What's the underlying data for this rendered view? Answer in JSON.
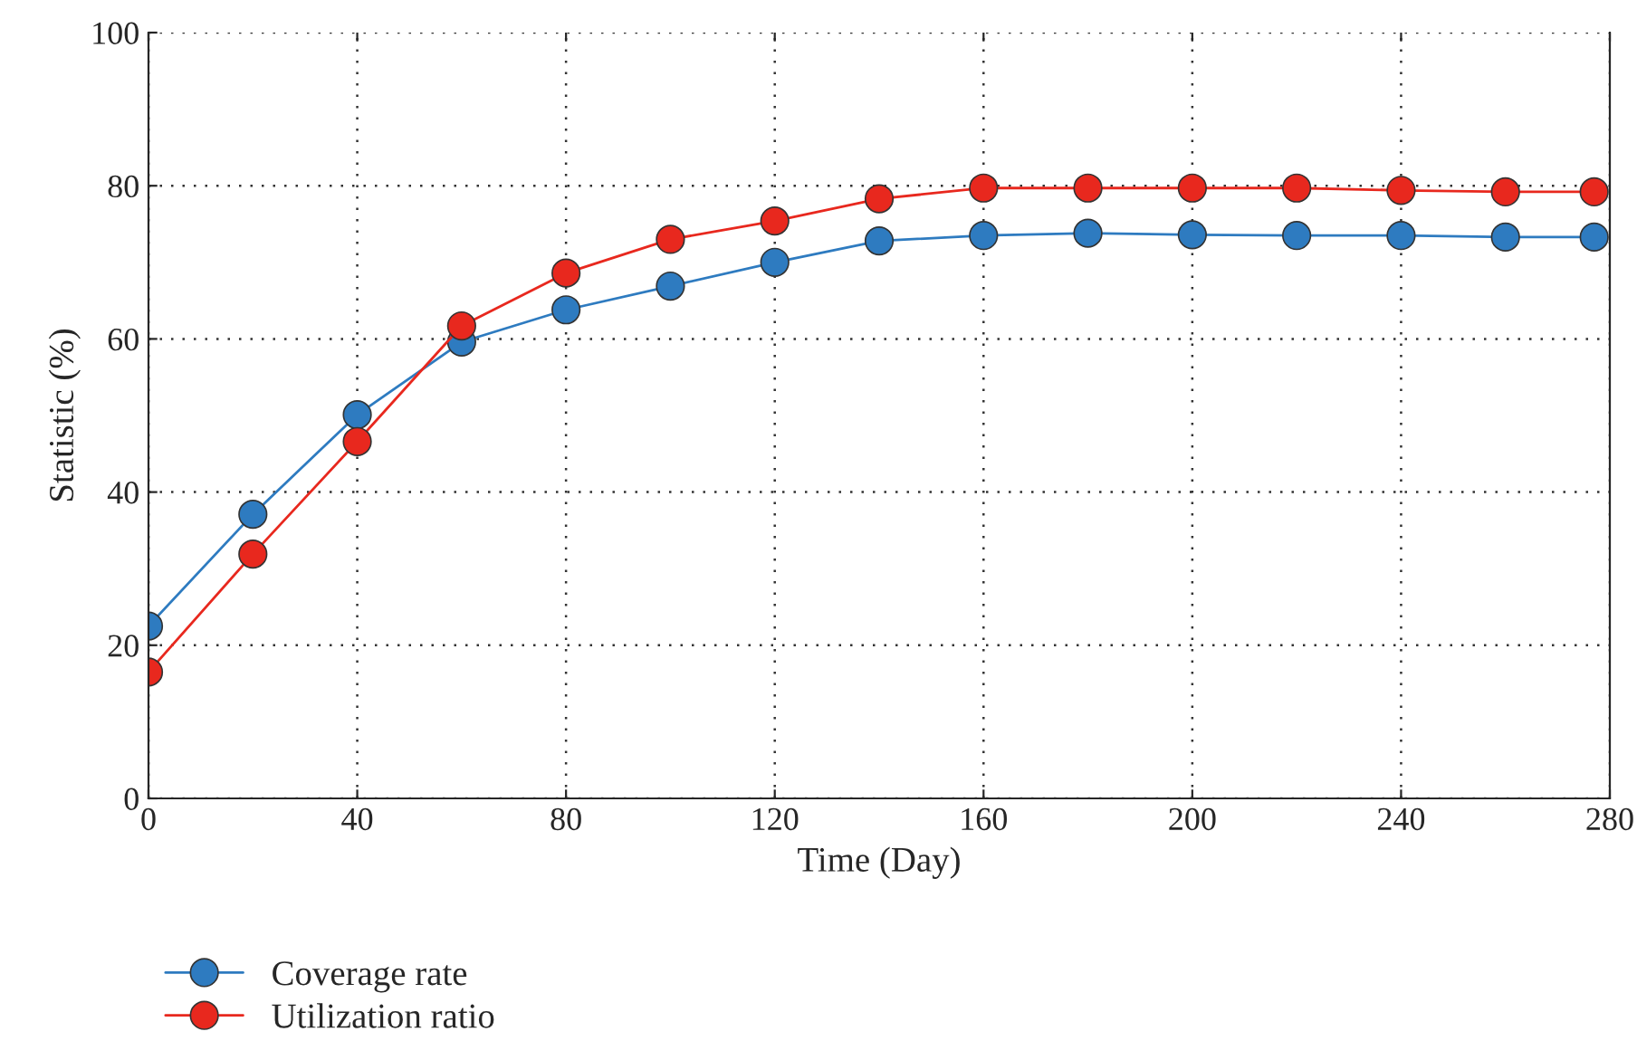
{
  "chart_data": {
    "type": "line",
    "xlabel": "Time (Day)",
    "ylabel": "Statistic (%)",
    "x": [
      0,
      20,
      40,
      60,
      80,
      100,
      120,
      140,
      160,
      180,
      200,
      220,
      240,
      260,
      277
    ],
    "series": [
      {
        "name": "Coverage rate",
        "color": "#2e7bc0",
        "values": [
          22.5,
          37.1,
          50.1,
          59.6,
          63.8,
          66.9,
          70.0,
          72.8,
          73.5,
          73.8,
          73.6,
          73.5,
          73.5,
          73.3,
          73.3
        ]
      },
      {
        "name": "Utilization ratio",
        "color": "#e8281e",
        "values": [
          16.5,
          31.9,
          46.6,
          61.7,
          68.6,
          73.0,
          75.4,
          78.3,
          79.7,
          79.7,
          79.7,
          79.7,
          79.4,
          79.2,
          79.2
        ]
      }
    ],
    "xlim": [
      0,
      280
    ],
    "xticks": [
      0,
      40,
      80,
      120,
      160,
      200,
      240,
      280
    ],
    "ylim": [
      0,
      100
    ],
    "yticks": [
      0,
      20,
      40,
      60,
      80,
      100
    ],
    "grid": true,
    "legend": "bottom left",
    "marker": "circle",
    "line_style": "solid"
  }
}
